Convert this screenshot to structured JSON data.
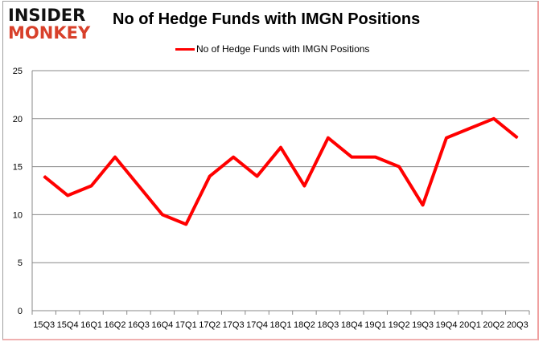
{
  "logo": {
    "line1": "INSIDER",
    "line2": "MONKEY"
  },
  "chart_data": {
    "type": "line",
    "title": "No of Hedge Funds with IMGN Positions",
    "xlabel": "",
    "ylabel": "",
    "categories": [
      "15Q3",
      "15Q4",
      "16Q1",
      "16Q2",
      "16Q3",
      "16Q4",
      "17Q1",
      "17Q2",
      "17Q3",
      "17Q4",
      "18Q1",
      "18Q2",
      "18Q3",
      "18Q4",
      "19Q1",
      "19Q2",
      "19Q3",
      "19Q4",
      "20Q1",
      "20Q2",
      "20Q3"
    ],
    "series": [
      {
        "name": "No of Hedge Funds with IMGN Positions",
        "color": "#ff0000",
        "values": [
          14,
          12,
          13,
          16,
          13,
          10,
          9,
          14,
          16,
          14,
          17,
          13,
          18,
          16,
          16,
          15,
          11,
          18,
          19,
          20,
          18
        ]
      }
    ],
    "ylim": [
      0,
      25
    ],
    "yticks": [
      0,
      5,
      10,
      15,
      20,
      25
    ],
    "grid": true,
    "legend": "top-center"
  }
}
